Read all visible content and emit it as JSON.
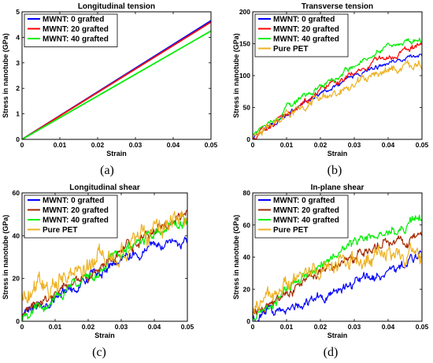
{
  "colors": {
    "mwnt_0": "#0000ff",
    "mwnt_20": "#ff0000",
    "mwnt_40": "#00ee00",
    "pure_pet": "#edb120",
    "mwnt_20_shear": "#a52a00"
  },
  "chart_data": [
    {
      "id": "a",
      "type": "line",
      "title": "Longitudinal tension",
      "panel_label": "(a)",
      "xlabel": "Strain",
      "ylabel": "Stress in nanotube (GPa)",
      "xlim": [
        0,
        0.05
      ],
      "ylim": [
        0,
        5
      ],
      "xticks": [
        0,
        0.01,
        0.02,
        0.03,
        0.04,
        0.05
      ],
      "xtick_labels": [
        "0",
        "0.01",
        "0.02",
        "0.03",
        "0.04",
        "0.05"
      ],
      "yticks": [
        0,
        1,
        2,
        3,
        4,
        5
      ],
      "ytick_labels": [
        "0",
        "1",
        "2",
        "3",
        "4",
        "5"
      ],
      "legend_position": "top-left",
      "series": [
        {
          "name": "MWNT: 0 grafted",
          "color": "#0000ff",
          "x": [
            0,
            0.05
          ],
          "y": [
            0,
            4.65
          ],
          "noise": 0
        },
        {
          "name": "MWNT: 20 grafted",
          "color": "#ff0000",
          "x": [
            0,
            0.05
          ],
          "y": [
            0,
            4.6
          ],
          "noise": 0
        },
        {
          "name": "MWNT: 40 grafted",
          "color": "#00ee00",
          "x": [
            0,
            0.05
          ],
          "y": [
            0,
            4.25
          ],
          "noise": 0
        }
      ]
    },
    {
      "id": "b",
      "type": "line",
      "title": "Transverse tension",
      "panel_label": "(b)",
      "xlabel": "Strain",
      "ylabel": "Stress in nanotube (GPa)",
      "xlim": [
        0,
        0.05
      ],
      "ylim": [
        0,
        200
      ],
      "xticks": [
        0,
        0.01,
        0.02,
        0.03,
        0.04,
        0.05
      ],
      "xtick_labels": [
        "0",
        "0.01",
        "0.02",
        "0.03",
        "0.04",
        "0.05"
      ],
      "yticks": [
        0,
        50,
        100,
        150,
        200
      ],
      "ytick_labels": [
        "0",
        "50",
        "100",
        "150",
        "200"
      ],
      "legend_position": "top-left",
      "series": [
        {
          "name": "MWNT: 0 grafted",
          "color": "#0000ff",
          "x": [
            0,
            0.01,
            0.02,
            0.03,
            0.04,
            0.05
          ],
          "y": [
            2,
            38,
            72,
            100,
            120,
            132
          ],
          "noise": 5
        },
        {
          "name": "MWNT: 20 grafted",
          "color": "#ff0000",
          "x": [
            0,
            0.01,
            0.02,
            0.03,
            0.04,
            0.05
          ],
          "y": [
            2,
            40,
            76,
            105,
            130,
            150
          ],
          "noise": 6
        },
        {
          "name": "MWNT: 40 grafted",
          "color": "#00ee00",
          "x": [
            0,
            0.01,
            0.02,
            0.03,
            0.04,
            0.05
          ],
          "y": [
            10,
            48,
            85,
            115,
            145,
            157
          ],
          "noise": 6
        },
        {
          "name": "Pure PET",
          "color": "#edb120",
          "x": [
            0,
            0.01,
            0.02,
            0.03,
            0.04,
            0.05
          ],
          "y": [
            5,
            40,
            65,
            88,
            108,
            110
          ],
          "noise": 9
        }
      ]
    },
    {
      "id": "c",
      "type": "line",
      "title": "Longitudinal shear",
      "panel_label": "(c)",
      "xlabel": "Strain",
      "ylabel": "Stress in nanotube (GPa)",
      "xlim": [
        0,
        0.05
      ],
      "ylim": [
        0,
        60
      ],
      "xticks": [
        0,
        0.01,
        0.02,
        0.03,
        0.04,
        0.05
      ],
      "xtick_labels": [
        "0",
        "0.01",
        "0.02",
        "0.03",
        "0.04",
        "0.05"
      ],
      "yticks": [
        0,
        20,
        40,
        60
      ],
      "ytick_labels": [
        "0",
        "20",
        "40",
        "60"
      ],
      "legend_position": "top-left",
      "series": [
        {
          "name": "MWNT: 0 grafted",
          "color": "#0000ff",
          "x": [
            0,
            0.01,
            0.02,
            0.03,
            0.04,
            0.05
          ],
          "y": [
            3,
            11,
            20,
            30,
            36,
            36
          ],
          "noise": 3
        },
        {
          "name": "MWNT: 20 grafted",
          "color": "#a52a00",
          "x": [
            0,
            0.01,
            0.02,
            0.03,
            0.04,
            0.05
          ],
          "y": [
            3,
            12,
            22,
            33,
            42,
            50
          ],
          "noise": 3
        },
        {
          "name": "MWNT: 40 grafted",
          "color": "#00ee00",
          "x": [
            0,
            0.01,
            0.02,
            0.03,
            0.04,
            0.05
          ],
          "y": [
            2,
            11,
            21,
            31,
            41,
            48
          ],
          "noise": 3
        },
        {
          "name": "Pure PET",
          "color": "#edb120",
          "x": [
            0,
            0.01,
            0.02,
            0.03,
            0.04,
            0.05
          ],
          "y": [
            14,
            20,
            26,
            34,
            44,
            48
          ],
          "noise": 6
        }
      ]
    },
    {
      "id": "d",
      "type": "line",
      "title": "In-plane shear",
      "panel_label": "(d)",
      "xlabel": "Strain",
      "ylabel": "Stress in nanotube (GPa)",
      "xlim": [
        0,
        0.05
      ],
      "ylim": [
        0,
        80
      ],
      "xticks": [
        0,
        0.01,
        0.02,
        0.03,
        0.04,
        0.05
      ],
      "xtick_labels": [
        "0",
        "0.01",
        "0.02",
        "0.03",
        "0.04",
        "0.05"
      ],
      "yticks": [
        0,
        20,
        40,
        60,
        80
      ],
      "ytick_labels": [
        "0",
        "20",
        "40",
        "60",
        "80"
      ],
      "legend_position": "top-left",
      "series": [
        {
          "name": "MWNT: 0 grafted",
          "color": "#0000ff",
          "x": [
            0,
            0.01,
            0.02,
            0.03,
            0.04,
            0.05
          ],
          "y": [
            2,
            10,
            16,
            24,
            32,
            40
          ],
          "noise": 4
        },
        {
          "name": "MWNT: 20 grafted",
          "color": "#a52a00",
          "x": [
            0,
            0.01,
            0.02,
            0.03,
            0.04,
            0.05
          ],
          "y": [
            5,
            18,
            30,
            40,
            48,
            52
          ],
          "noise": 4
        },
        {
          "name": "MWNT: 40 grafted",
          "color": "#00ee00",
          "x": [
            0,
            0.01,
            0.02,
            0.03,
            0.04,
            0.05
          ],
          "y": [
            2,
            20,
            35,
            48,
            55,
            66
          ],
          "noise": 4
        },
        {
          "name": "Pure PET",
          "color": "#edb120",
          "x": [
            0,
            0.01,
            0.02,
            0.03,
            0.04,
            0.05
          ],
          "y": [
            10,
            22,
            32,
            38,
            42,
            42
          ],
          "noise": 7
        }
      ]
    }
  ]
}
